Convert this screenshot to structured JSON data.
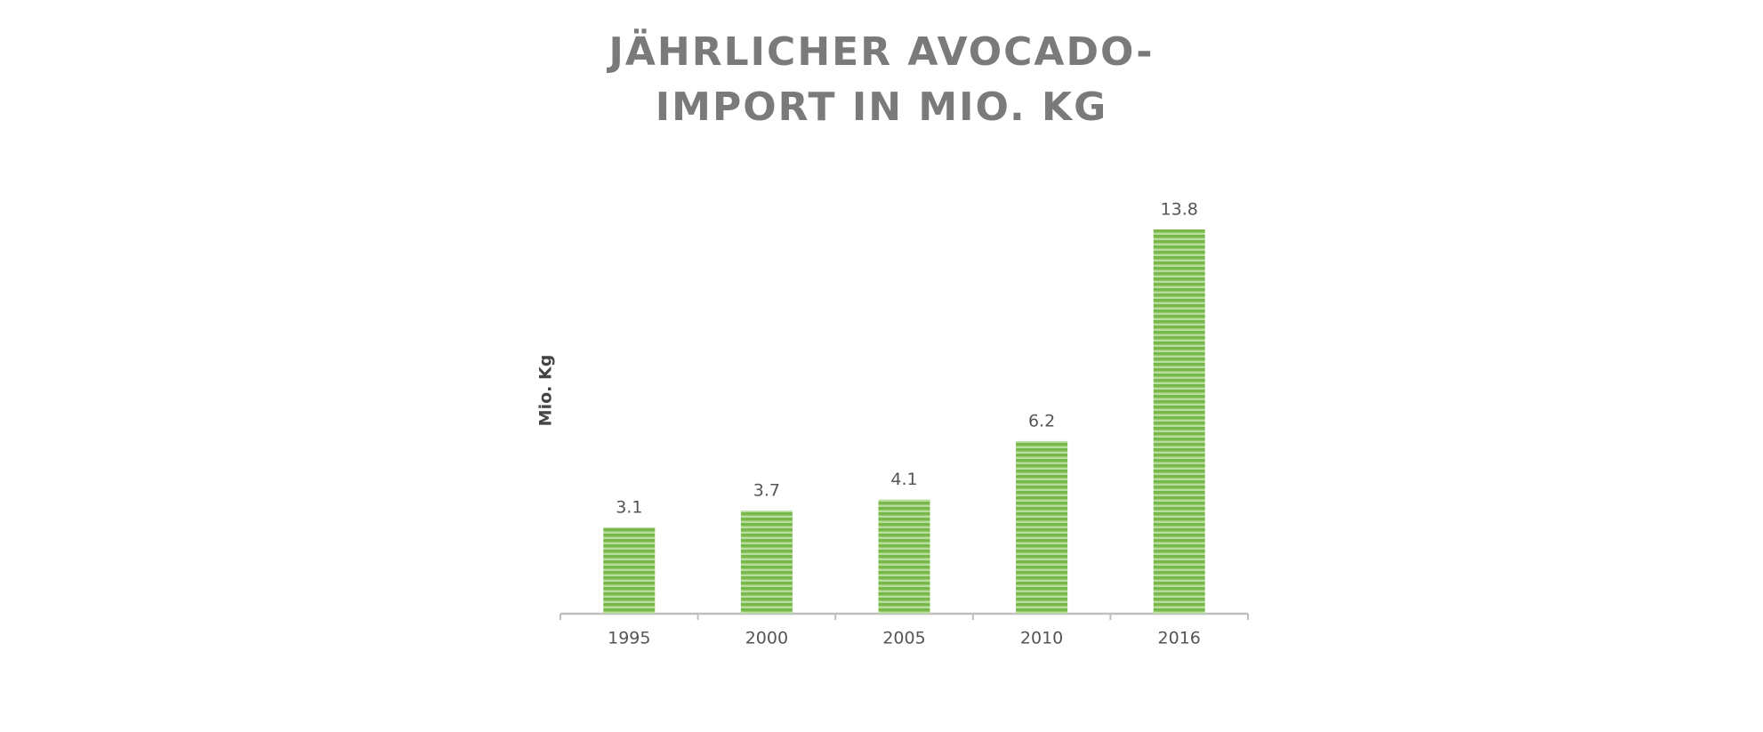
{
  "chart_data": {
    "type": "bar",
    "title": [
      "JÄHRLICHER AVOCADO-",
      "IMPORT IN MIO. KG"
    ],
    "y_label": "Mio. Kg",
    "categories": [
      "1995",
      "2000",
      "2005",
      "2010",
      "2016"
    ],
    "values": [
      3.1,
      3.7,
      4.1,
      6.2,
      13.8
    ],
    "color": "#78b84a"
  }
}
